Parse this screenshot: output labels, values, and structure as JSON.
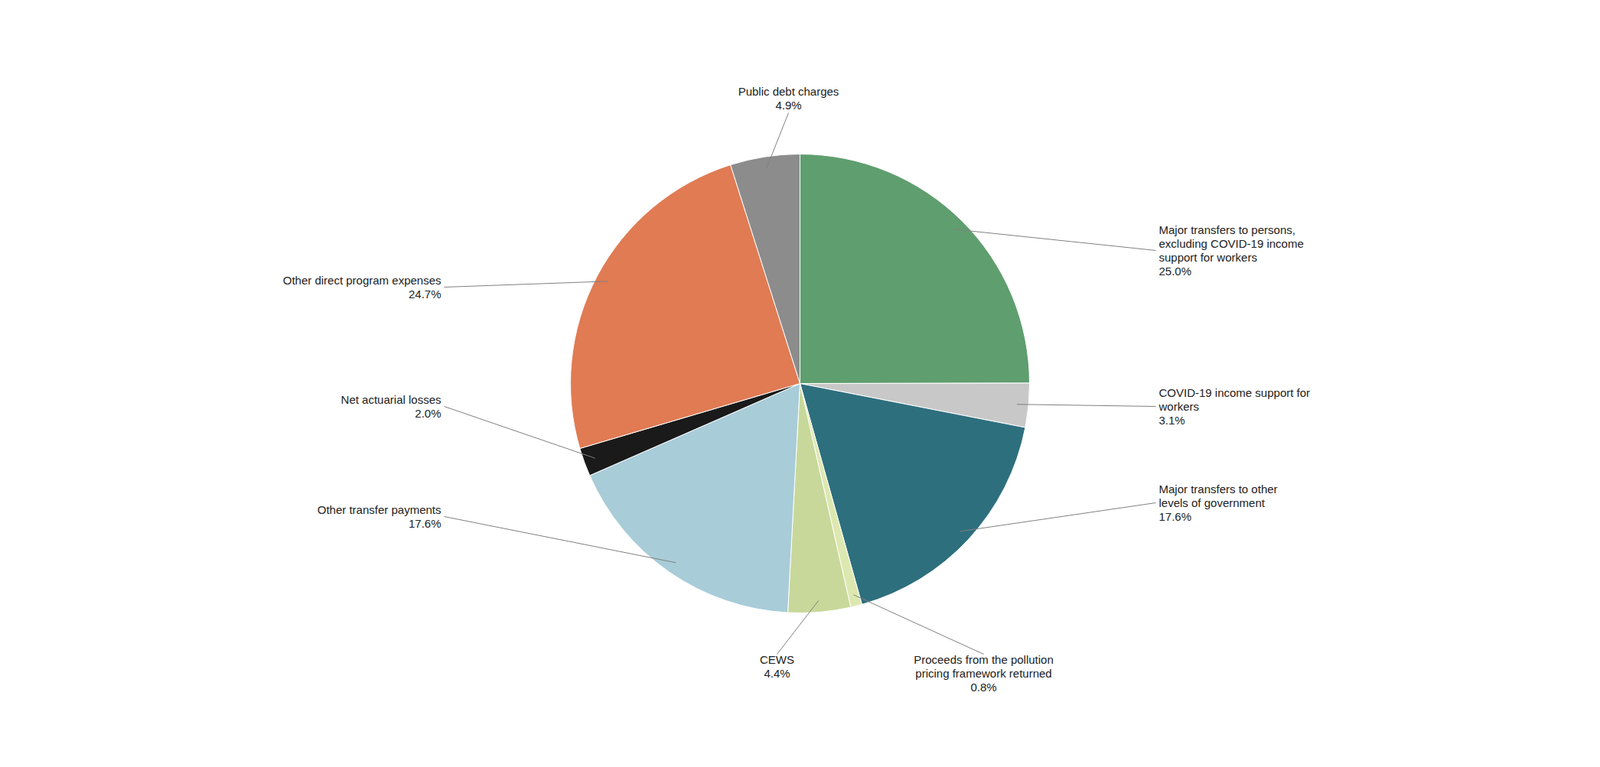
{
  "chart_data": {
    "type": "pie",
    "categories": [
      "Major transfers to persons,\nexcluding COVID-19 income\nsupport for workers",
      "COVID-19 income support for\nworkers",
      "Major transfers to other\nlevels of government",
      "Proceeds from the pollution\npricing framework returned",
      "CEWS",
      "Other transfer payments",
      "Net actuarial losses",
      "Other direct program expenses",
      "Public debt charges"
    ],
    "values": [
      25.0,
      3.1,
      17.6,
      0.8,
      4.4,
      17.6,
      2.0,
      24.7,
      4.9
    ],
    "value_labels": [
      "25.0%",
      "3.1%",
      "17.6%",
      "0.8%",
      "4.4%",
      "17.6%",
      "2.0%",
      "24.7%",
      "4.9%"
    ],
    "colors": [
      "#5f9e6e",
      "#c8c8c8",
      "#2e6f7e",
      "#dde8b0",
      "#c8d89a",
      "#a8ccd8",
      "#1a1a1a",
      "#e07b54",
      "#8c8c8c"
    ],
    "data_labels": true
  }
}
